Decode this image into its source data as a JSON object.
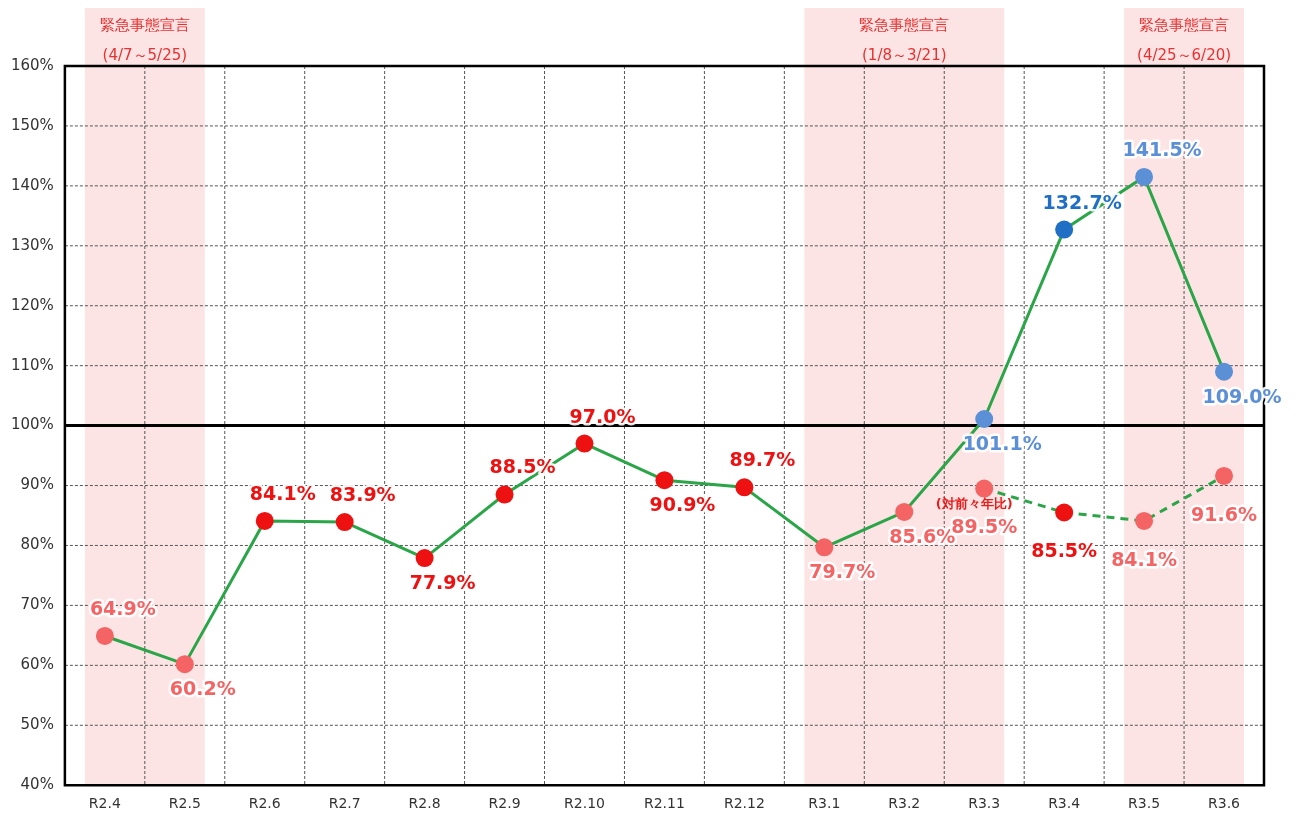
{
  "chart_data": {
    "type": "line",
    "categories": [
      "R2.4",
      "R2.5",
      "R2.6",
      "R2.7",
      "R2.8",
      "R2.9",
      "R2.10",
      "R2.11",
      "R2.12",
      "R3.1",
      "R3.2",
      "R3.3",
      "R3.4",
      "R3.5",
      "R3.6"
    ],
    "series": [
      {
        "color": "#2aa548",
        "colors": [
          "#f46464",
          "#f46464",
          "#ee1111",
          "#ee1111",
          "#ee1111",
          "#ee1111",
          "#ee1111",
          "#ee1111",
          "#ee1111",
          "#f46464",
          "#f46464",
          "#5b8fd6",
          "#1f6fc5",
          "#5b8fd6",
          "#5b8fd6"
        ],
        "values": [
          64.9,
          60.2,
          84.1,
          83.9,
          77.9,
          88.5,
          97.0,
          90.9,
          89.7,
          79.7,
          85.6,
          101.1,
          132.7,
          141.5,
          109.0
        ],
        "value_labels": [
          "64.9%",
          "60.2%",
          "84.1%",
          "83.9%",
          "77.9%",
          "88.5%",
          "97.0%",
          "90.9%",
          "89.7%",
          "79.7%",
          "85.6%",
          "101.1%",
          "132.7%",
          "141.5%",
          "109.0%"
        ]
      },
      {
        "color": "#2aa548",
        "line_style": "dashed",
        "colors": [
          null,
          null,
          null,
          null,
          null,
          null,
          null,
          null,
          null,
          null,
          null,
          "#f46464",
          "#ee1111",
          "#f46464",
          "#f46464"
        ],
        "values": [
          null,
          null,
          null,
          null,
          null,
          null,
          null,
          null,
          null,
          null,
          null,
          89.5,
          85.5,
          84.1,
          91.6
        ],
        "value_labels": [
          null,
          null,
          null,
          null,
          null,
          null,
          null,
          null,
          null,
          null,
          null,
          "89.5%",
          "85.5%",
          "84.1%",
          "91.6%"
        ]
      }
    ],
    "ylim": [
      40,
      160
    ],
    "yticks": [
      {
        "value": 40,
        "label": "40%"
      },
      {
        "value": 50,
        "label": "50%"
      },
      {
        "value": 60,
        "label": "60%"
      },
      {
        "value": 70,
        "label": "70%"
      },
      {
        "value": 80,
        "label": "80%"
      },
      {
        "value": 90,
        "label": "90%"
      },
      {
        "value": 100,
        "label": "100%"
      },
      {
        "value": 110,
        "label": "110%"
      },
      {
        "value": 120,
        "label": "120%"
      },
      {
        "value": 130,
        "label": "130%"
      },
      {
        "value": 140,
        "label": "140%"
      },
      {
        "value": 150,
        "label": "150%"
      },
      {
        "value": 160,
        "label": "160%"
      }
    ],
    "grid": true,
    "marker": "circle",
    "legend": false,
    "ref_lines": [
      {
        "axis": "y",
        "value": 100,
        "color": "#000000"
      }
    ],
    "bands": [
      {
        "axis": "x",
        "from": "R2.4",
        "to": "R2.5",
        "label": "緊急事態宣言\n(4/7～5/25)",
        "color": "#fde4e4"
      },
      {
        "axis": "x",
        "from": "R3.1",
        "to": "R3.3",
        "label": "緊急事態宣言\n(1/8～3/21)",
        "color": "#fde4e4"
      },
      {
        "axis": "x",
        "from": "R3.5",
        "to": "R3.6",
        "label": "緊急事態宣言\n(4/25～6/20)",
        "color": "#fde4e4"
      }
    ],
    "annotations": [
      {
        "text": "(対前々年比)",
        "x": "R3.3",
        "y": 89.5
      }
    ]
  }
}
